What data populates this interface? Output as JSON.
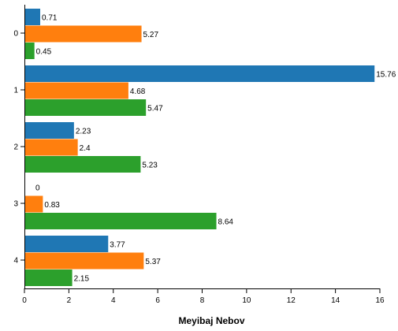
{
  "chart_data": {
    "type": "bar",
    "orientation": "horizontal",
    "categories": [
      "0",
      "1",
      "2",
      "3",
      "4"
    ],
    "series": [
      {
        "color": "#1f77b4",
        "values": [
          0.71,
          15.76,
          2.23,
          0,
          3.77
        ],
        "labels": [
          "0.71",
          "15.76",
          "2.23",
          "0",
          "3.77"
        ]
      },
      {
        "color": "#ff7f0e",
        "values": [
          5.27,
          4.68,
          2.4,
          0.83,
          5.37
        ],
        "labels": [
          "5.27",
          "4.68",
          "2.4",
          "0.83",
          "5.37"
        ]
      },
      {
        "color": "#2ca02c",
        "values": [
          0.45,
          5.47,
          5.23,
          8.64,
          2.15
        ],
        "labels": [
          "0.45",
          "5.47",
          "5.23",
          "8.64",
          "2.15"
        ]
      }
    ],
    "xlim": [
      0,
      16
    ],
    "xticks": [
      "0",
      "2",
      "4",
      "6",
      "8",
      "10",
      "12",
      "14",
      "16"
    ],
    "xlabel": "Meyibaj Nebov",
    "ylabel": "",
    "grid": false,
    "legend": "none"
  }
}
